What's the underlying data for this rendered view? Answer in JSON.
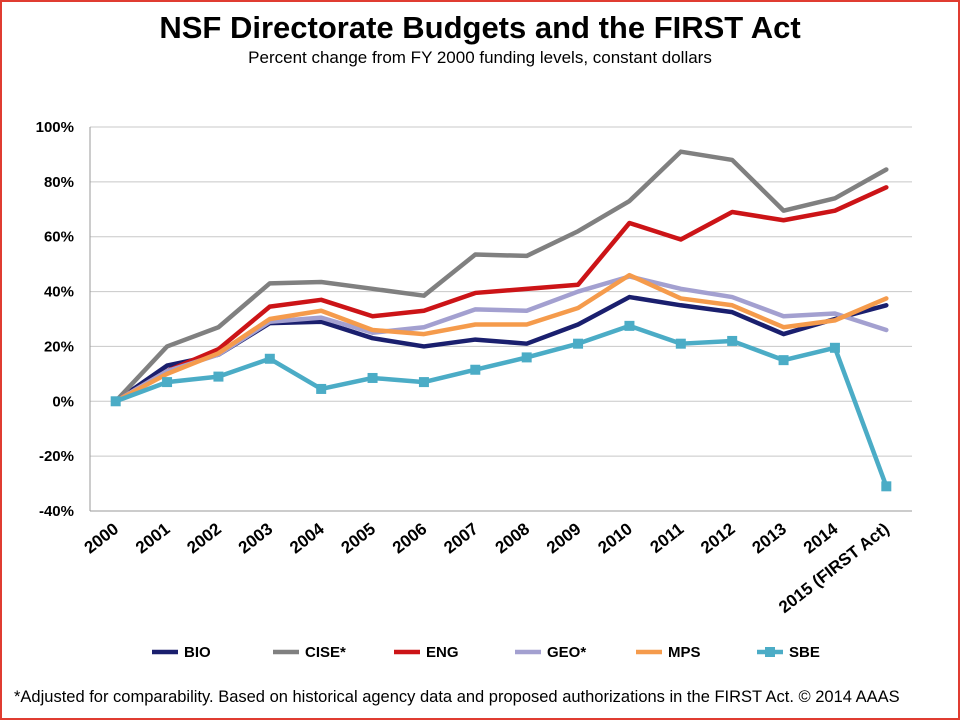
{
  "title": "NSF Directorate Budgets and the FIRST Act",
  "subtitle": "Percent change from FY 2000 funding levels, constant dollars",
  "footnote": "*Adjusted for comparability. Based on historical agency data and proposed authorizations in the FIRST Act. © 2014 AAAS",
  "colors": {
    "frame": "#e03c31"
  },
  "chart_data": {
    "type": "line",
    "title": "NSF Directorate Budgets and the FIRST Act",
    "subtitle": "Percent change from FY 2000 funding levels, constant dollars",
    "xlabel": "",
    "ylabel": "",
    "ylim": [
      -40,
      100
    ],
    "yticks": [
      -40,
      -20,
      0,
      20,
      40,
      60,
      80,
      100
    ],
    "ytick_labels": [
      "-40%",
      "-20%",
      "0%",
      "20%",
      "40%",
      "60%",
      "80%",
      "100%"
    ],
    "grid": "horizontal",
    "legend_position": "bottom",
    "categories": [
      "2000",
      "2001",
      "2002",
      "2003",
      "2004",
      "2005",
      "2006",
      "2007",
      "2008",
      "2009",
      "2010",
      "2011",
      "2012",
      "2013",
      "2014",
      "2015 (FIRST Act)"
    ],
    "series": [
      {
        "name": "BIO",
        "color": "#1a1f6e",
        "marker": "none",
        "values": [
          0,
          13,
          17,
          28.5,
          29,
          23,
          20,
          22.5,
          21,
          28,
          38,
          35,
          32.5,
          24.5,
          30,
          35
        ]
      },
      {
        "name": "CISE*",
        "color": "#808080",
        "marker": "none",
        "values": [
          0,
          20,
          27,
          43,
          43.5,
          41,
          38.5,
          53.5,
          53,
          62,
          73,
          91,
          88,
          69.5,
          74,
          84.5
        ]
      },
      {
        "name": "ENG",
        "color": "#cc1417",
        "marker": "none",
        "values": [
          0,
          11,
          19,
          34.5,
          37,
          31,
          33,
          39.5,
          41,
          42.5,
          65,
          59,
          69,
          66,
          69.5,
          78
        ]
      },
      {
        "name": "GEO*",
        "color": "#a3a0d0",
        "marker": "none",
        "values": [
          0,
          11,
          17,
          29,
          30.5,
          25,
          27,
          33.5,
          33,
          40,
          45.5,
          41,
          38,
          31,
          32,
          26
        ]
      },
      {
        "name": "MPS",
        "color": "#f59b4c",
        "marker": "none",
        "values": [
          0,
          10,
          17.5,
          30,
          33,
          26,
          24.5,
          28,
          28,
          34,
          46,
          37.5,
          35,
          27,
          29.5,
          37.5
        ]
      },
      {
        "name": "SBE",
        "color": "#4bacc6",
        "marker": "square",
        "values": [
          0,
          7,
          9,
          15.5,
          4.5,
          8.5,
          7,
          11.5,
          16,
          21,
          27.5,
          21,
          22,
          15,
          19.5,
          -31
        ]
      }
    ]
  }
}
